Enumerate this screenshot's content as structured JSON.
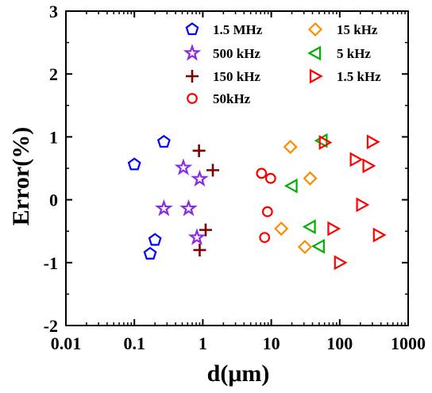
{
  "chart_data": {
    "type": "scatter",
    "xlabel": "d(μm)",
    "ylabel": "Error(%)",
    "xscale": "log",
    "xlim": [
      0.01,
      1000
    ],
    "ylim": [
      -2,
      3
    ],
    "xticks": [
      {
        "value": 0.01,
        "label": "0.01"
      },
      {
        "value": 0.1,
        "label": "0.1"
      },
      {
        "value": 1,
        "label": "1"
      },
      {
        "value": 10,
        "label": "10"
      },
      {
        "value": 100,
        "label": "100"
      },
      {
        "value": 1000,
        "label": "1000"
      }
    ],
    "yticks": [
      {
        "value": -2,
        "label": "-2"
      },
      {
        "value": -1,
        "label": "-1"
      },
      {
        "value": 0,
        "label": "0"
      },
      {
        "value": 1,
        "label": "1"
      },
      {
        "value": 2,
        "label": "2"
      },
      {
        "value": 3,
        "label": "3"
      }
    ],
    "grid": false,
    "legend_position": "top-right",
    "series": [
      {
        "name": "1.5 MHz",
        "marker": "pentagon",
        "color": "#0000ff",
        "points": [
          [
            0.1,
            0.56
          ],
          [
            0.27,
            0.92
          ],
          [
            0.2,
            -0.64
          ],
          [
            0.17,
            -0.86
          ]
        ]
      },
      {
        "name": "500 kHz",
        "marker": "star",
        "color": "#8a2be2",
        "points": [
          [
            0.52,
            0.51
          ],
          [
            0.9,
            0.33
          ],
          [
            0.27,
            -0.14
          ],
          [
            0.62,
            -0.14
          ],
          [
            0.82,
            -0.6
          ]
        ]
      },
      {
        "name": "150 kHz",
        "marker": "plus",
        "color": "#800000",
        "points": [
          [
            0.88,
            0.78
          ],
          [
            1.4,
            0.47
          ],
          [
            1.1,
            -0.48
          ],
          [
            0.9,
            -0.8
          ]
        ]
      },
      {
        "name": "50kHz",
        "marker": "circle",
        "color": "#ff0000",
        "points": [
          [
            7.2,
            0.42
          ],
          [
            9.8,
            0.34
          ],
          [
            8.8,
            -0.19
          ],
          [
            8.0,
            -0.6
          ]
        ]
      },
      {
        "name": "15 kHz",
        "marker": "diamond",
        "color": "#ff8c00",
        "points": [
          [
            19,
            0.84
          ],
          [
            37,
            0.34
          ],
          [
            14,
            -0.46
          ],
          [
            31,
            -0.75
          ]
        ]
      },
      {
        "name": "5 kHz",
        "marker": "triangle-left",
        "color": "#00b000",
        "points": [
          [
            55,
            0.94
          ],
          [
            20,
            0.22
          ],
          [
            37,
            -0.43
          ],
          [
            50,
            -0.74
          ]
        ]
      },
      {
        "name": "1.5 kHz",
        "marker": "triangle-right",
        "color": "#ff0000",
        "points": [
          [
            60,
            0.91
          ],
          [
            300,
            0.92
          ],
          [
            170,
            0.64
          ],
          [
            260,
            0.54
          ],
          [
            210,
            -0.08
          ],
          [
            80,
            -0.46
          ],
          [
            370,
            -0.56
          ],
          [
            100,
            -1.0
          ]
        ]
      }
    ]
  }
}
